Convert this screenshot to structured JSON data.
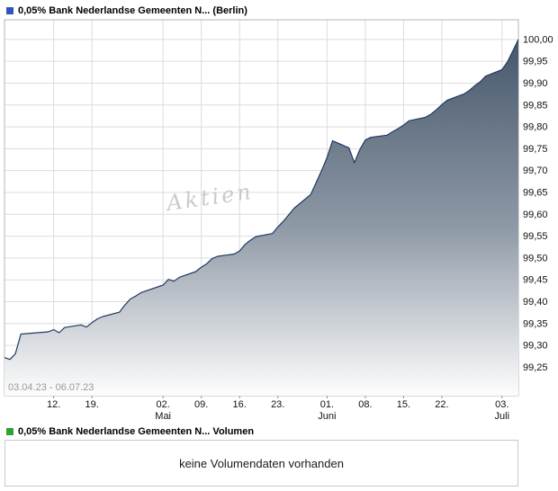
{
  "header": {
    "title": "0,05% Bank Nederlandse Gemeenten N... (Berlin)",
    "legend_color": "#3355bb"
  },
  "chart_data": {
    "type": "area",
    "title": "0,05% Bank Nederlandse Gemeenten N... (Berlin)",
    "date_range_label": "03.04.23 - 06.07.23",
    "watermark": "Aktien",
    "grid": true,
    "legend_position": "top-left",
    "ylim": [
      99.185,
      100.045
    ],
    "x_range_days": [
      0,
      94
    ],
    "line_color": "#203a60",
    "fill_top": "#3f5065",
    "fill_mid": "#8e99a6",
    "fill_bottom": "#fdfdfd",
    "grid_color": "#dcdcdc",
    "border_color": "#b5b5b5",
    "y_ticks": [
      {
        "label": "100,00",
        "value": 100.0
      },
      {
        "label": "99,95",
        "value": 99.95
      },
      {
        "label": "99,90",
        "value": 99.9
      },
      {
        "label": "99,85",
        "value": 99.85
      },
      {
        "label": "99,80",
        "value": 99.8
      },
      {
        "label": "99,75",
        "value": 99.75
      },
      {
        "label": "99,70",
        "value": 99.7
      },
      {
        "label": "99,65",
        "value": 99.65
      },
      {
        "label": "99,60",
        "value": 99.6
      },
      {
        "label": "99,55",
        "value": 99.55
      },
      {
        "label": "99,50",
        "value": 99.5
      },
      {
        "label": "99,45",
        "value": 99.45
      },
      {
        "label": "99,40",
        "value": 99.4
      },
      {
        "label": "99,35",
        "value": 99.35
      },
      {
        "label": "99,30",
        "value": 99.3
      },
      {
        "label": "99,25",
        "value": 99.25
      }
    ],
    "x_ticks": [
      {
        "label": "12.",
        "day": 9
      },
      {
        "label": "19.",
        "day": 16
      },
      {
        "label": "02.",
        "day": 29,
        "month": "Mai"
      },
      {
        "label": "09.",
        "day": 36
      },
      {
        "label": "16.",
        "day": 43
      },
      {
        "label": "23.",
        "day": 50
      },
      {
        "label": "01.",
        "day": 59,
        "month": "Juni"
      },
      {
        "label": "08.",
        "day": 66
      },
      {
        "label": "15.",
        "day": 73
      },
      {
        "label": "22.",
        "day": 80
      },
      {
        "label": "03.",
        "day": 91,
        "month": "Juli"
      }
    ],
    "series": [
      {
        "name": "0,05% Bank Nederlandse Gemeenten N...",
        "x_days": [
          0,
          1,
          2,
          3,
          8,
          9,
          10,
          11,
          14,
          15,
          16,
          17,
          18,
          21,
          22,
          23,
          24,
          25,
          29,
          30,
          31,
          32,
          35,
          36,
          37,
          38,
          39,
          42,
          43,
          44,
          45,
          46,
          49,
          50,
          51,
          52,
          53,
          56,
          57,
          58,
          59,
          60,
          63,
          64,
          65,
          66,
          67,
          70,
          71,
          72,
          73,
          74,
          77,
          78,
          79,
          80,
          81,
          84,
          85,
          86,
          87,
          88,
          91,
          92,
          93,
          94
        ],
        "values": [
          99.272,
          99.268,
          99.281,
          99.326,
          99.331,
          99.336,
          99.329,
          99.341,
          99.347,
          99.342,
          99.352,
          99.361,
          99.366,
          99.376,
          99.392,
          99.406,
          99.413,
          99.421,
          99.438,
          99.451,
          99.447,
          99.456,
          99.469,
          99.479,
          99.487,
          99.499,
          99.504,
          99.509,
          99.516,
          99.531,
          99.541,
          99.549,
          99.556,
          99.571,
          99.584,
          99.599,
          99.614,
          99.645,
          99.672,
          99.7,
          99.73,
          99.768,
          99.752,
          99.718,
          99.748,
          99.77,
          99.776,
          99.781,
          99.789,
          99.796,
          99.804,
          99.814,
          99.822,
          99.829,
          99.839,
          99.851,
          99.861,
          99.875,
          99.883,
          99.894,
          99.903,
          99.916,
          99.931,
          99.949,
          99.974,
          100.0
        ]
      }
    ]
  },
  "volume": {
    "title": "0,05% Bank Nederlandse Gemeenten N... Volumen",
    "legend_color": "#33a033",
    "message": "keine Volumendaten vorhanden"
  }
}
